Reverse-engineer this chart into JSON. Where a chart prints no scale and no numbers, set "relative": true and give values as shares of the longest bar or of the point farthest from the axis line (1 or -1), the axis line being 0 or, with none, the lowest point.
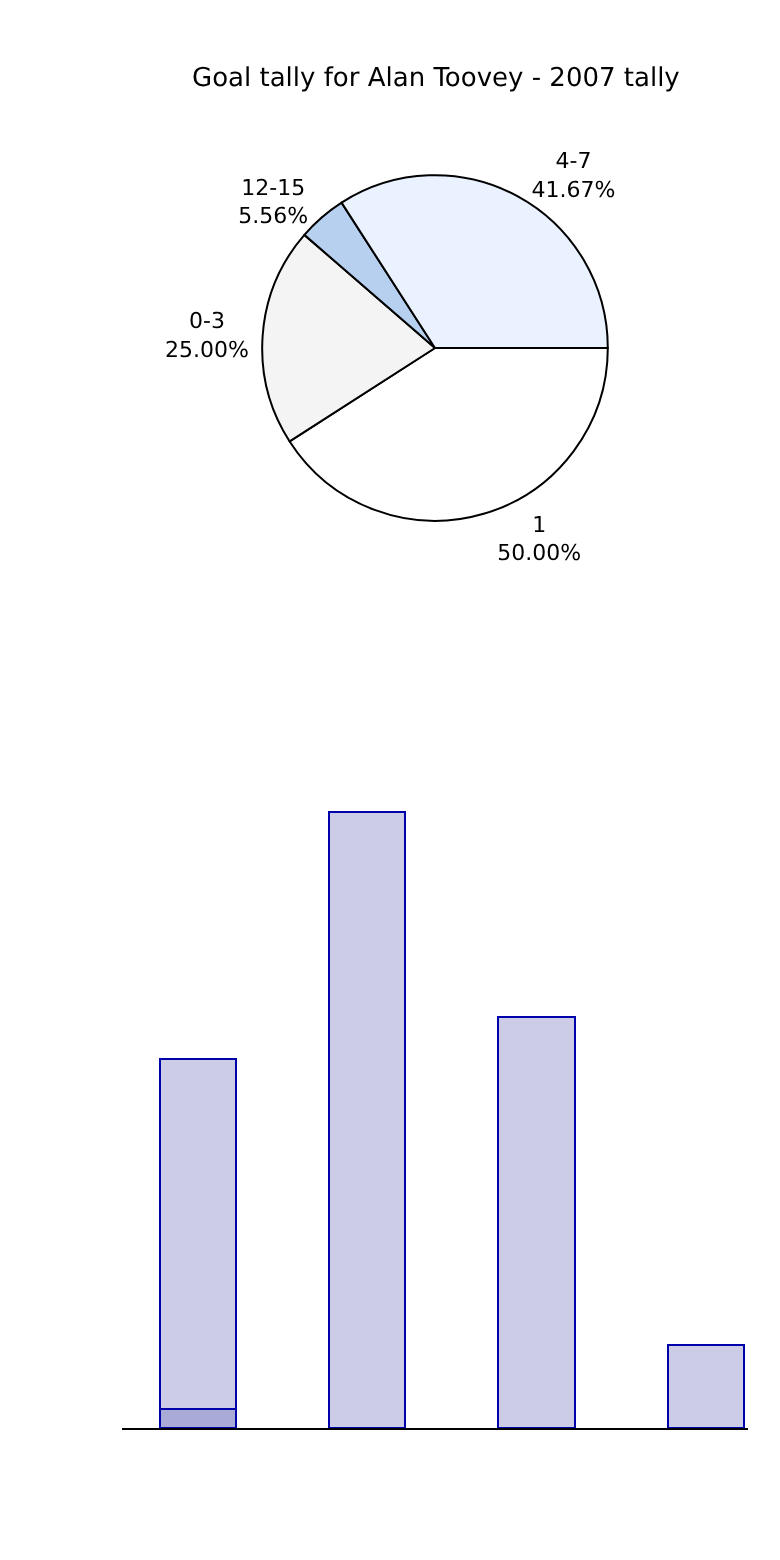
{
  "chart_data": [
    {
      "type": "pie",
      "title": "Goal tally for Alan Toovey - 2007 tally",
      "categories": [
        "1",
        "0-3",
        "12-15",
        "4-7"
      ],
      "values": [
        50,
        25,
        5.56,
        41.67
      ],
      "value_labels": [
        "50.00%",
        "25.00%",
        "5.56%",
        "41.67%"
      ],
      "colors": [
        "#ffffff",
        "#f4f4f4",
        "#b8d0f0",
        "#eaf1ff"
      ]
    },
    {
      "type": "bar",
      "relative": true,
      "stacked": true,
      "categories": [
        null,
        null,
        null,
        null
      ],
      "series": [
        {
          "color": "#aaaad6",
          "values": [
            0.031,
            0,
            0,
            0
          ]
        },
        {
          "color": "#ccccE6",
          "values": [
            0.568,
            1,
            0.668,
            0.135
          ]
        }
      ]
    }
  ]
}
